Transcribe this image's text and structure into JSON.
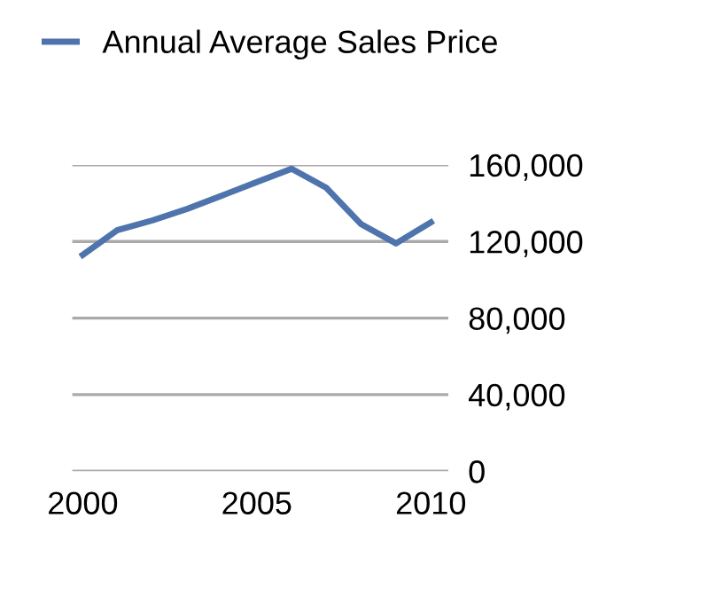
{
  "chart_data": {
    "type": "line",
    "x": [
      2000,
      2001,
      2002,
      2003,
      2004,
      2005,
      2006,
      2007,
      2008,
      2009,
      2010
    ],
    "series": [
      {
        "name": "Annual Average Sales Price",
        "color": "#4f74ad",
        "values": [
          113000,
          126000,
          131000,
          137000,
          144000,
          151000,
          158000,
          148000,
          129000,
          119000,
          130000
        ]
      }
    ],
    "xlim": [
      1999.7,
      2010.5
    ],
    "xticks": [
      2000,
      2005,
      2010
    ],
    "ylim": [
      0,
      160000
    ],
    "yticks": [
      {
        "value": 0,
        "label": "0"
      },
      {
        "value": 40000,
        "label": "40,000"
      },
      {
        "value": 80000,
        "label": "80,000"
      },
      {
        "value": 120000,
        "label": "120,000"
      },
      {
        "value": 160000,
        "label": "160,000"
      }
    ],
    "grid": "y",
    "legend": "top left",
    "marker": "none",
    "line_style": "solid"
  }
}
